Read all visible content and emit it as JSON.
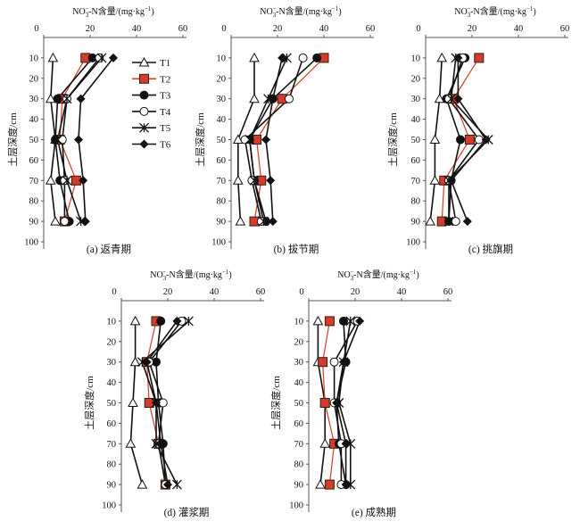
{
  "chart_data": [
    {
      "type": "line",
      "caption": "(a) 返青期",
      "xlabel": "NO3−-N含量/(mg·kg−1)",
      "ylabel": "土层深度/cm",
      "xlim": [
        0,
        60
      ],
      "ylim": [
        0,
        100
      ],
      "y_inverted": true,
      "x_axis_position": "top",
      "xticks": [
        0,
        20,
        40,
        60
      ],
      "yticks": [
        10,
        20,
        30,
        40,
        50,
        60,
        70,
        80,
        90,
        100
      ],
      "depths": [
        10,
        30,
        50,
        70,
        90
      ],
      "legend_position": "right",
      "series": [
        {
          "name": "T1",
          "values": [
            4,
            3,
            5,
            3,
            5
          ]
        },
        {
          "name": "T2",
          "values": [
            18,
            8,
            7,
            14,
            9
          ]
        },
        {
          "name": "T3",
          "values": [
            21,
            6,
            5,
            7,
            11
          ]
        },
        {
          "name": "T4",
          "values": [
            24,
            10,
            8,
            9,
            9
          ]
        },
        {
          "name": "T5",
          "values": [
            25,
            10,
            6,
            10,
            16
          ]
        },
        {
          "name": "T6",
          "values": [
            30,
            16,
            15,
            17,
            18
          ]
        }
      ]
    },
    {
      "type": "line",
      "caption": "(b) 拔节期",
      "xlabel": "NO3−-N含量/(mg·kg−1)",
      "ylabel": "土层深度/cm",
      "xlim": [
        0,
        60
      ],
      "ylim": [
        0,
        100
      ],
      "y_inverted": true,
      "x_axis_position": "top",
      "xticks": [
        0,
        20,
        40,
        60
      ],
      "yticks": [
        10,
        20,
        30,
        40,
        50,
        60,
        70,
        80,
        90,
        100
      ],
      "depths": [
        10,
        30,
        50,
        70,
        90
      ],
      "series": [
        {
          "name": "T1",
          "values": [
            10,
            10,
            3,
            3,
            4
          ]
        },
        {
          "name": "T2",
          "values": [
            40,
            22,
            11,
            13,
            10
          ]
        },
        {
          "name": "T3",
          "values": [
            37,
            18,
            8,
            10,
            15
          ]
        },
        {
          "name": "T4",
          "values": [
            31,
            25,
            6,
            9,
            13
          ]
        },
        {
          "name": "T5",
          "values": [
            24,
            16,
            8,
            10,
            14
          ]
        },
        {
          "name": "T6",
          "values": [
            22,
            18,
            15,
            17,
            18
          ]
        }
      ]
    },
    {
      "type": "line",
      "caption": "(c) 挑旗期",
      "xlabel": "NO3−-N含量/(mg·kg−1)",
      "ylabel": "土层深度/cm",
      "xlim": [
        0,
        60
      ],
      "ylim": [
        0,
        100
      ],
      "y_inverted": true,
      "x_axis_position": "top",
      "xticks": [
        0,
        20,
        40,
        60
      ],
      "yticks": [
        10,
        20,
        30,
        40,
        50,
        60,
        70,
        80,
        90,
        100
      ],
      "depths": [
        10,
        30,
        50,
        70,
        90
      ],
      "series": [
        {
          "name": "T1",
          "values": [
            7,
            6,
            4,
            4,
            2
          ]
        },
        {
          "name": "T2",
          "values": [
            23,
            12,
            19,
            8,
            7
          ]
        },
        {
          "name": "T3",
          "values": [
            17,
            9,
            15,
            11,
            10
          ]
        },
        {
          "name": "T4",
          "values": [
            16,
            10,
            23,
            10,
            13
          ]
        },
        {
          "name": "T5",
          "values": [
            13,
            11,
            27,
            10,
            10
          ]
        },
        {
          "name": "T6",
          "values": [
            14,
            14,
            26,
            11,
            18
          ]
        }
      ]
    },
    {
      "type": "line",
      "caption": "(d) 灌浆期",
      "xlabel": "NO3−-N含量/(mg·kg−1)",
      "ylabel": "土层深度/cm",
      "xlim": [
        0,
        60
      ],
      "ylim": [
        0,
        100
      ],
      "y_inverted": true,
      "x_axis_position": "top",
      "xticks": [
        0,
        20,
        40,
        60
      ],
      "yticks": [
        10,
        20,
        30,
        40,
        50,
        60,
        70,
        80,
        90,
        100
      ],
      "depths": [
        10,
        30,
        50,
        70,
        90
      ],
      "series": [
        {
          "name": "T1",
          "values": [
            6,
            6,
            5,
            4,
            9
          ]
        },
        {
          "name": "T2",
          "values": [
            15,
            11,
            12,
            16,
            19
          ]
        },
        {
          "name": "T3",
          "values": [
            17,
            15,
            16,
            18,
            19
          ]
        },
        {
          "name": "T4",
          "values": [
            26,
            12,
            18,
            16,
            19
          ]
        },
        {
          "name": "T5",
          "values": [
            29,
            9,
            15,
            15,
            24
          ]
        },
        {
          "name": "T6",
          "values": [
            24,
            11,
            15,
            17,
            20
          ]
        }
      ]
    },
    {
      "type": "line",
      "caption": "(e) 成熟期",
      "xlabel": "NO3−-N含量/(mg·kg−1)",
      "ylabel": "土层深度/cm",
      "xlim": [
        0,
        60
      ],
      "ylim": [
        0,
        100
      ],
      "y_inverted": true,
      "x_axis_position": "top",
      "xticks": [
        0,
        20,
        40,
        60
      ],
      "yticks": [
        10,
        20,
        30,
        40,
        50,
        60,
        70,
        80,
        90,
        100
      ],
      "depths": [
        10,
        30,
        50,
        70,
        90
      ],
      "series": [
        {
          "name": "T1",
          "values": [
            4,
            4,
            7,
            7,
            5
          ]
        },
        {
          "name": "T2",
          "values": [
            9,
            6,
            7,
            11,
            9
          ]
        },
        {
          "name": "T3",
          "values": [
            15,
            16,
            12,
            13,
            16
          ]
        },
        {
          "name": "T4",
          "values": [
            21,
            11,
            11,
            14,
            14
          ]
        },
        {
          "name": "T5",
          "values": [
            18,
            15,
            13,
            18,
            18
          ]
        },
        {
          "name": "T6",
          "values": [
            22,
            15,
            12,
            16,
            16
          ]
        }
      ]
    }
  ],
  "style": {
    "line_color": "#111111",
    "T2_color": "#d23c2a",
    "markers": {
      "T1": "open-triangle",
      "T2": "red-square",
      "T3": "filled-circle",
      "T4": "open-circle",
      "T5": "x-mark",
      "T6": "filled-diamond"
    }
  }
}
